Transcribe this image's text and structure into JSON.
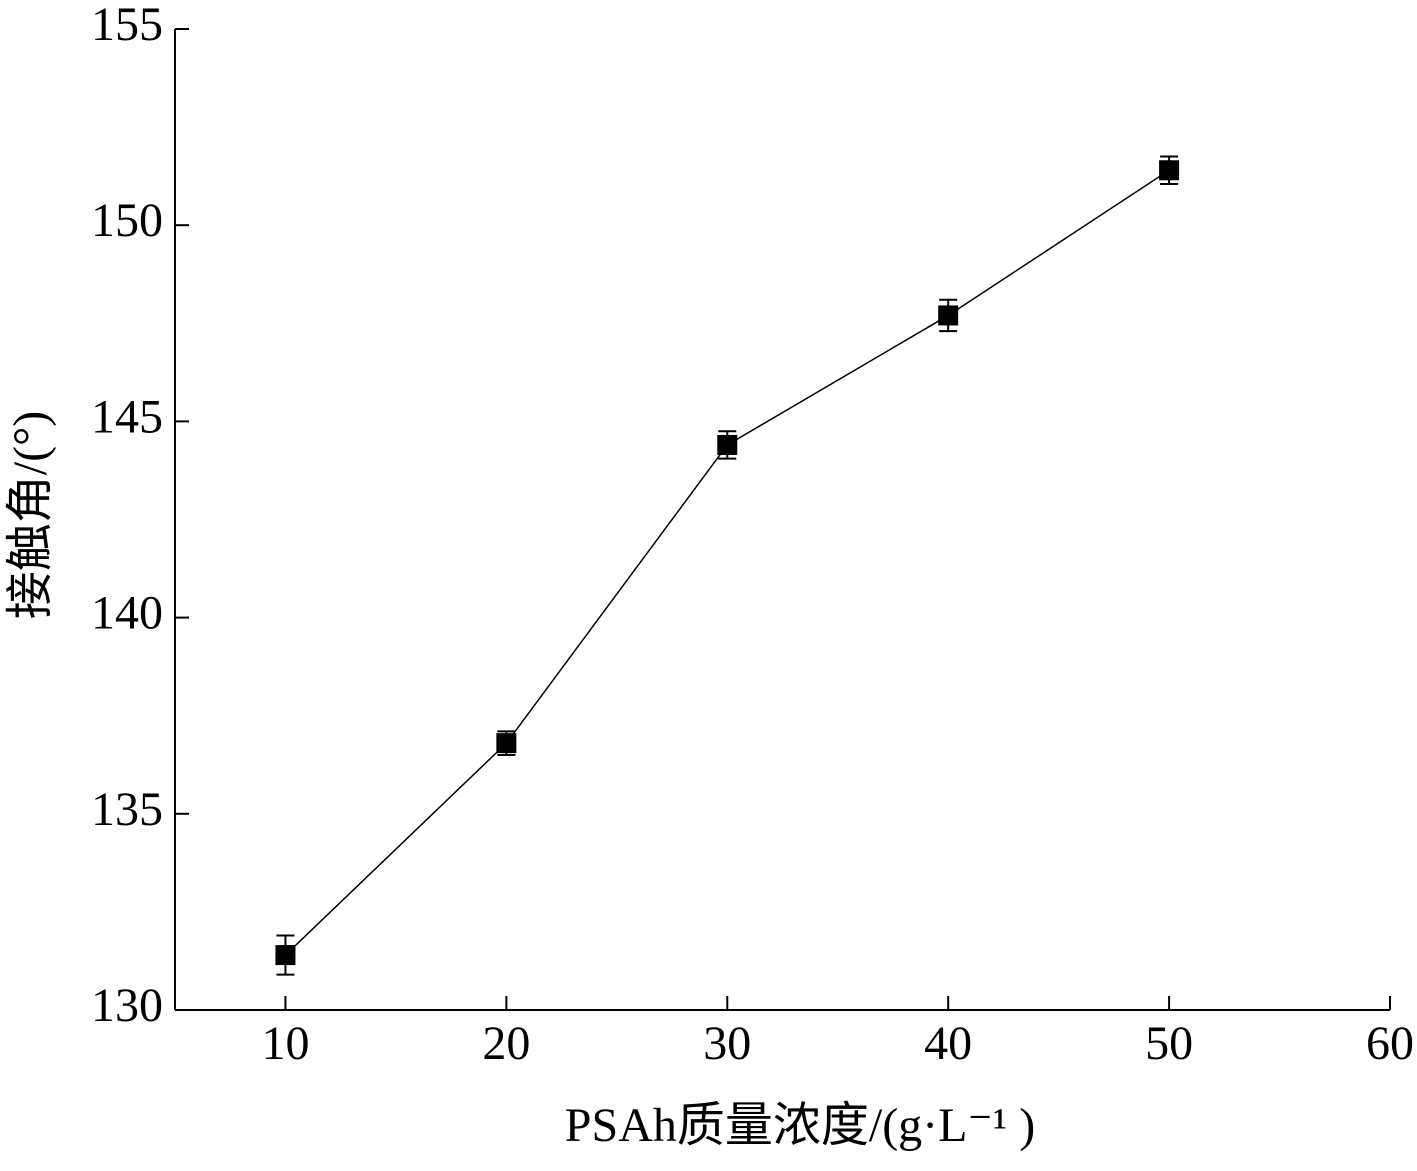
{
  "chart_data": {
    "type": "line",
    "x_label": "PSAh质量浓度/(g·L⁻¹ )",
    "y_label": "接触角/(°)",
    "x": [
      10,
      20,
      30,
      40,
      50
    ],
    "values": [
      131.4,
      136.8,
      144.4,
      147.7,
      151.4
    ],
    "errors": [
      0.5,
      0.3,
      0.35,
      0.4,
      0.35
    ],
    "color": "#000000",
    "xlim": [
      5,
      60
    ],
    "xticks": [
      10,
      20,
      30,
      40,
      50,
      60
    ],
    "ylim": [
      130,
      155
    ],
    "yticks": [
      130,
      135,
      140,
      145,
      150,
      155
    ],
    "grid": false
  }
}
